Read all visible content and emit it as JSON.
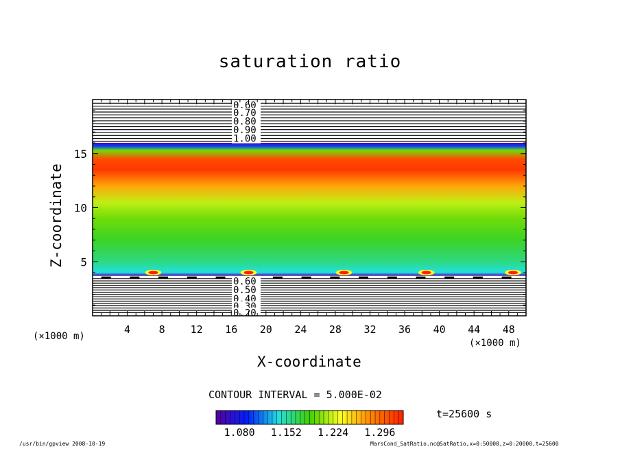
{
  "title": "saturation ratio",
  "x_axis_label": "X-coordinate",
  "y_axis_label": "Z-coordinate",
  "x_unit_label": "(×1000 m)",
  "y_unit_label": "(×1000 m)",
  "contour_interval_text": "CONTOUR INTERVAL = 5.000E-02",
  "time_text": "t=25600 s",
  "footer_left": "/usr/bin/gpview   2008-10-19",
  "footer_right": "MarsCond_SatRatio.nc@SatRatio,x=0:50000,z=0:20000,t=25600",
  "colorbar_labels": [
    "1.080",
    "1.152",
    "1.224",
    "1.296"
  ],
  "colors": {
    "low": "#5a00a0",
    "blue": "#0020ff",
    "cyan": "#20e0e0",
    "green": "#40d000",
    "yellow": "#ffff20",
    "orange": "#ff8000",
    "red": "#ff2000"
  },
  "chart_data": {
    "type": "heatmap",
    "title": "saturation ratio",
    "xlabel": "X-coordinate",
    "ylabel": "Z-coordinate",
    "xlim": [
      0,
      50
    ],
    "ylim": [
      0,
      20
    ],
    "x_ticks": [
      4,
      8,
      12,
      16,
      20,
      24,
      28,
      32,
      36,
      40,
      44,
      48
    ],
    "y_ticks": [
      5,
      10,
      15
    ],
    "contour_interval": 0.05,
    "color_range": [
      1.044,
      1.332
    ],
    "colorbar_ticks": [
      1.08,
      1.152,
      1.224,
      1.296
    ],
    "upper_contour_labels": [
      "0.60",
      "0.70",
      "0.80",
      "0.90",
      "1.00"
    ],
    "lower_contour_labels": [
      "0.60",
      "0.50",
      "0.40",
      "0.30",
      "0.20"
    ],
    "upper_contour_values": [
      0.6,
      0.7,
      0.8,
      0.9,
      1.0
    ],
    "lower_contour_values": [
      0.6,
      0.5,
      0.4,
      0.3,
      0.2
    ],
    "shaded_layer": {
      "z_bottom": 3.7,
      "z_top": 16.0
    },
    "vertical_profile": [
      {
        "z": 3.7,
        "value": 1.05
      },
      {
        "z": 4.0,
        "value": 1.14
      },
      {
        "z": 5.0,
        "value": 1.16
      },
      {
        "z": 7.0,
        "value": 1.18
      },
      {
        "z": 9.0,
        "value": 1.2
      },
      {
        "z": 10.5,
        "value": 1.22
      },
      {
        "z": 12.0,
        "value": 1.27
      },
      {
        "z": 13.5,
        "value": 1.32
      },
      {
        "z": 14.5,
        "value": 1.31
      },
      {
        "z": 15.3,
        "value": 1.2
      },
      {
        "z": 15.7,
        "value": 1.1
      },
      {
        "z": 16.0,
        "value": 1.05
      }
    ],
    "hot_spots_x": [
      7,
      18,
      29,
      38.5,
      48.5
    ],
    "hot_spot_z": 4.0
  }
}
